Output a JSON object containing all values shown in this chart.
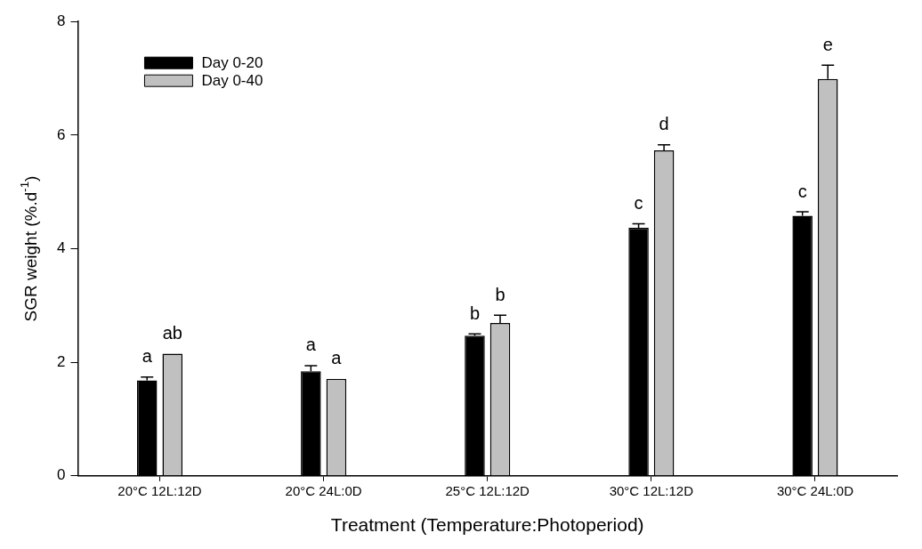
{
  "chart_data": {
    "type": "bar",
    "xlabel": "Treatment (Temperature:Photoperiod)",
    "ylabel": "SGR weight (%.d$^{-1}$)",
    "categories": [
      "20°C 12L:12D",
      "20°C 24L:0D",
      "25°C 12L:12D",
      "30°C 12L:12D",
      "30°C 24L:0D"
    ],
    "series": [
      {
        "name": "Day 0-20",
        "color": "#000000",
        "values": [
          1.68,
          1.84,
          2.47,
          4.37,
          4.58
        ],
        "errors": [
          0.06,
          0.1,
          0.03,
          0.07,
          0.07
        ],
        "value_labels": [
          "a",
          "a",
          "b",
          "c",
          "c"
        ]
      },
      {
        "name": "Day 0-40",
        "color": "#c0c0c0",
        "values": [
          2.15,
          1.71,
          2.69,
          5.73,
          6.99
        ],
        "errors": [
          null,
          null,
          0.14,
          0.1,
          0.24
        ],
        "value_labels": [
          "ab",
          "a",
          "b",
          "d",
          "e"
        ]
      }
    ],
    "ylim": [
      0,
      8
    ],
    "yticks": [
      0,
      2,
      4,
      6,
      8
    ],
    "grid": false,
    "legend": "top left"
  }
}
